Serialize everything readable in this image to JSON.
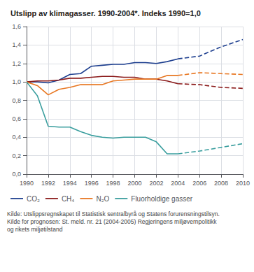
{
  "chart_data": {
    "type": "line",
    "title": "Utslipp av klimagasser. 1990-2004*. Indeks 1990=1,0",
    "xlim": [
      1990,
      2010
    ],
    "xticks": [
      1990,
      1992,
      1994,
      1996,
      1998,
      2000,
      2002,
      2004,
      2006,
      2008,
      2010
    ],
    "ylim": [
      0.0,
      1.6
    ],
    "yticks": [
      {
        "value": 0.0,
        "label": "0,0"
      },
      {
        "value": 0.2,
        "label": "0,2"
      },
      {
        "value": 0.4,
        "label": "0,4"
      },
      {
        "value": 0.6,
        "label": "0,6"
      },
      {
        "value": 0.8,
        "label": "0,8"
      },
      {
        "value": 1.0,
        "label": "1,0"
      },
      {
        "value": 1.2,
        "label": "1,2"
      },
      {
        "value": 1.4,
        "label": "1,4"
      },
      {
        "value": 1.6,
        "label": "1,6"
      }
    ],
    "grid": true,
    "series": [
      {
        "name": "CO₂",
        "color": "#1e3f8f",
        "line_style": "solid",
        "x": [
          1990,
          1991,
          1992,
          1993,
          1994,
          1995,
          1996,
          1997,
          1998,
          1999,
          2000,
          2001,
          2002,
          2003,
          2004
        ],
        "values": [
          1.0,
          1.0,
          0.99,
          1.02,
          1.08,
          1.09,
          1.17,
          1.18,
          1.19,
          1.19,
          1.21,
          1.21,
          1.2,
          1.22,
          1.25
        ]
      },
      {
        "name": "CO₂",
        "color": "#1e3f8f",
        "line_style": "dashed",
        "x": [
          2004,
          2006,
          2008,
          2010
        ],
        "values": [
          1.25,
          1.28,
          1.38,
          1.46
        ]
      },
      {
        "name": "CH₄",
        "color": "#8b1a1a",
        "line_style": "solid",
        "x": [
          1990,
          1991,
          1992,
          1993,
          1994,
          1995,
          1996,
          1997,
          1998,
          1999,
          2000,
          2001,
          2002,
          2003,
          2004
        ],
        "values": [
          1.0,
          1.01,
          1.01,
          1.02,
          1.04,
          1.04,
          1.05,
          1.06,
          1.06,
          1.05,
          1.05,
          1.03,
          1.03,
          1.01,
          0.98
        ]
      },
      {
        "name": "CH₄",
        "color": "#8b1a1a",
        "line_style": "dashed",
        "x": [
          2004,
          2006,
          2008,
          2010
        ],
        "values": [
          0.98,
          0.97,
          0.94,
          0.93
        ]
      },
      {
        "name": "N₂O",
        "color": "#e87722",
        "line_style": "solid",
        "x": [
          1990,
          1991,
          1992,
          1993,
          1994,
          1995,
          1996,
          1997,
          1998,
          1999,
          2000,
          2001,
          2002,
          2003,
          2004
        ],
        "values": [
          1.0,
          0.96,
          0.86,
          0.92,
          0.94,
          0.97,
          0.97,
          0.97,
          1.01,
          1.02,
          1.03,
          1.03,
          1.03,
          1.07,
          1.07
        ]
      },
      {
        "name": "N₂O",
        "color": "#e87722",
        "line_style": "dashed",
        "x": [
          2004,
          2006,
          2008,
          2010
        ],
        "values": [
          1.07,
          1.1,
          1.09,
          1.08
        ]
      },
      {
        "name": "Fluorholdige gasser",
        "color": "#3a9e9e",
        "line_style": "solid",
        "x": [
          1990,
          1991,
          1992,
          1993,
          1994,
          1995,
          1996,
          1997,
          1998,
          1999,
          2000,
          2001,
          2002,
          2003,
          2004
        ],
        "values": [
          1.0,
          0.85,
          0.52,
          0.51,
          0.51,
          0.46,
          0.42,
          0.4,
          0.39,
          0.4,
          0.4,
          0.4,
          0.35,
          0.22,
          0.22
        ]
      },
      {
        "name": "Fluorholdige gasser",
        "color": "#3a9e9e",
        "line_style": "dashed",
        "x": [
          2004,
          2006,
          2008,
          2010
        ],
        "values": [
          0.22,
          0.25,
          0.29,
          0.33
        ]
      }
    ],
    "source": "Kilde: Utslippsregnskapet til Statistisk sentralbyrå og Statens forurensningstilsyn.\nKilde for prognosen: St. meld. nr. 21 (2004-2005) Regjeringens miljøvernpolitikk\nog rikets miljøtilstand"
  }
}
